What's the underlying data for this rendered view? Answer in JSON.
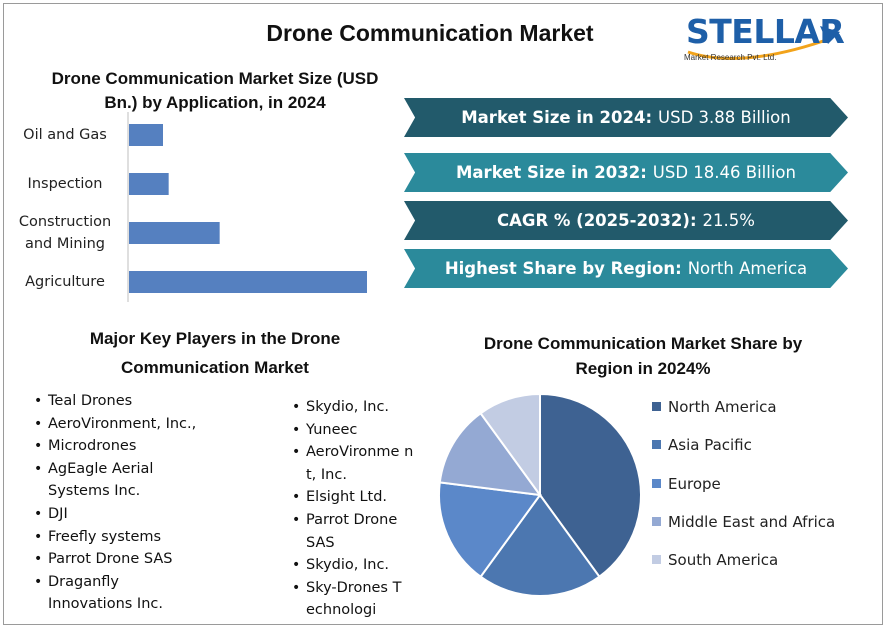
{
  "title": "Drone Communication Market",
  "logo": {
    "name": "STELLAR",
    "tagline": "Market Research Pvt. Ltd."
  },
  "banners": [
    {
      "label": "Market Size in 2024:",
      "value": "USD 3.88 Billion",
      "color": "#225a6b"
    },
    {
      "label": "Market Size in 2032:",
      "value": "USD 18.46 Billion",
      "color": "#2b8a9b"
    },
    {
      "label": "CAGR % (2025-2032):",
      "value": "21.5%",
      "color": "#225a6b"
    },
    {
      "label": "Highest Share by Region:",
      "value": "North America",
      "color": "#2b8a9b"
    }
  ],
  "players_title": "Major Key Players in the Drone Communication Market",
  "players_col1": [
    "Teal Drones",
    "AeroVironment, Inc.,",
    "Microdrones",
    "AgEagle Aerial Systems Inc.",
    "DJI",
    "Freefly systems",
    "Parrot Drone SAS",
    "Draganfly Innovations Inc."
  ],
  "players_col2": [
    "Skydio, Inc.",
    "Yuneec",
    "AeroVironme nt, Inc.",
    "Elsight Ltd.",
    "Parrot Drone SAS",
    "Skydio, Inc.",
    "Sky-Drones Technologi"
  ],
  "chart_data": [
    {
      "type": "bar",
      "orientation": "horizontal",
      "title": "Drone Communication Market Size (USD Bn.) by Application, in 2024",
      "categories": [
        "Oil and Gas",
        "Inspection",
        "Construction and Mining",
        "Agriculture"
      ],
      "values": [
        0.3,
        0.35,
        0.8,
        2.1
      ],
      "xlim": [
        0,
        2.1
      ],
      "grid": false,
      "color": "#5580c0"
    },
    {
      "type": "pie",
      "title": "Drone Communication Market Share by Region in 2024%",
      "categories": [
        "North America",
        "Asia Pacific",
        "Europe",
        "Middle East and Africa",
        "South America"
      ],
      "values": [
        40,
        20,
        17,
        13,
        10
      ],
      "colors": [
        "#3e6292",
        "#4c77b0",
        "#5b88c9",
        "#94a9d3",
        "#c2cce3"
      ],
      "legend_position": "right"
    }
  ]
}
